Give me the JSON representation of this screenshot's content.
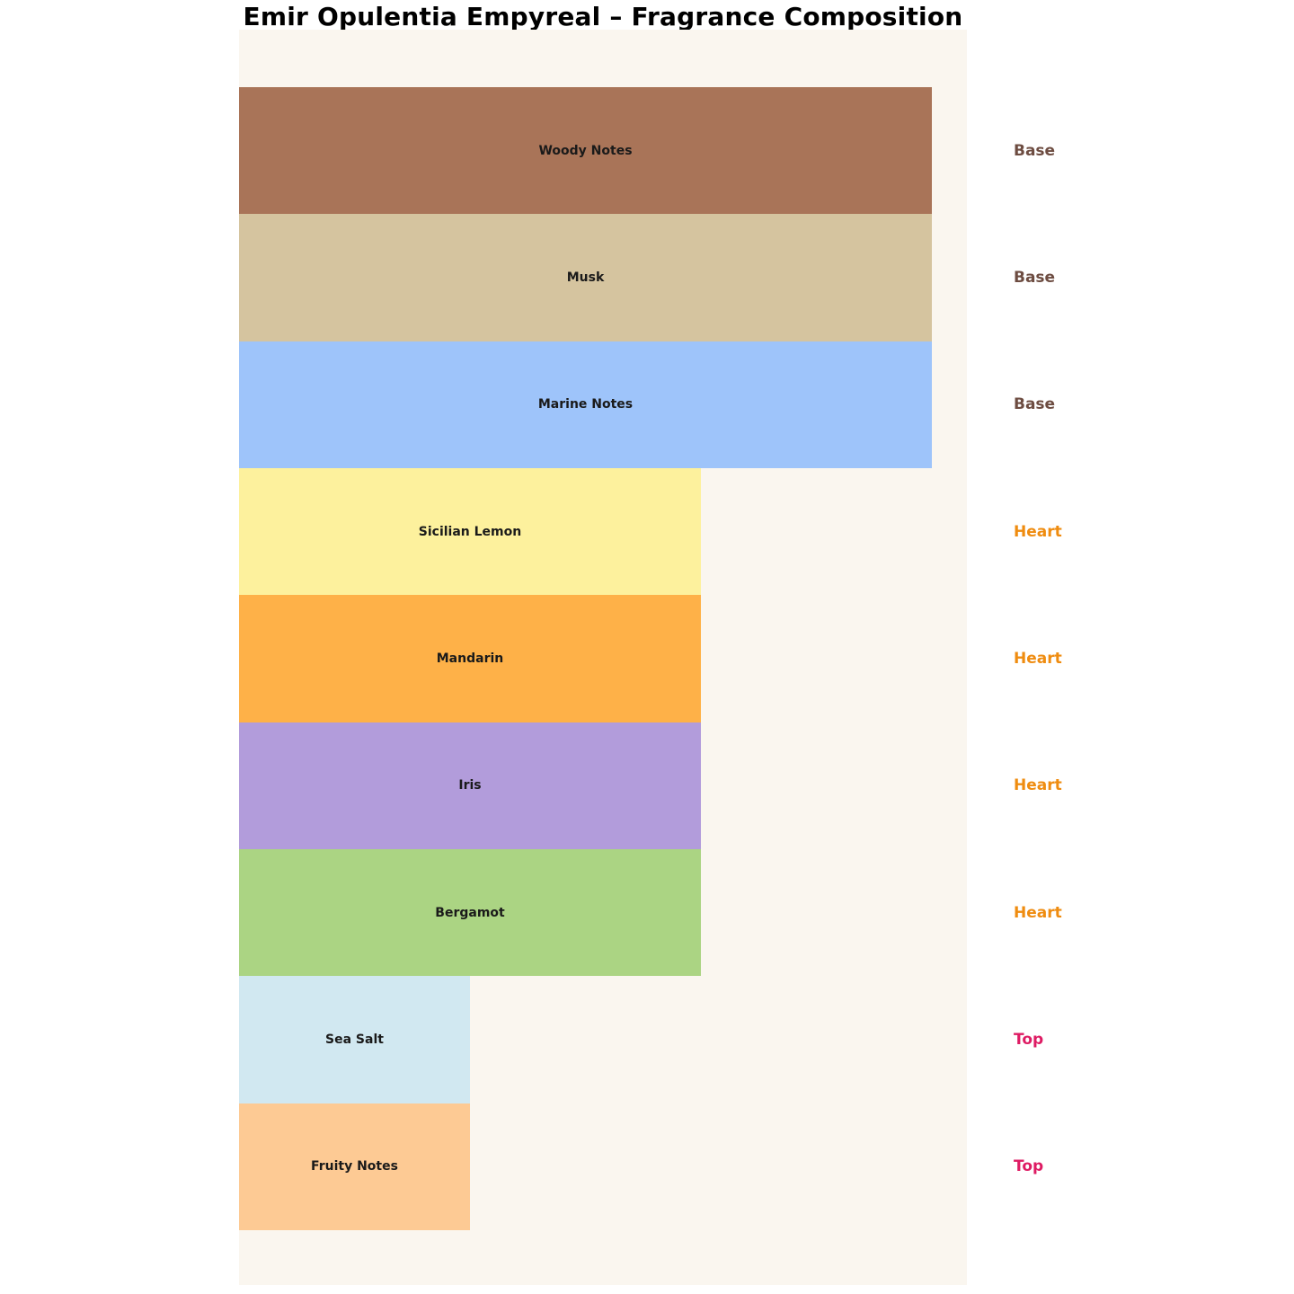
{
  "title": "Emir Opulentia Empyreal – Fragrance Composition",
  "panel": {
    "background_color": "#faf6ef",
    "page_background_color": "#ffffff"
  },
  "chart_data": {
    "type": "bar",
    "orientation": "horizontal",
    "title": "Emir Opulentia Empyreal – Fragrance Composition",
    "categories": [
      "Woody Notes",
      "Musk",
      "Marine Notes",
      "Sicilian Lemon",
      "Mandarin",
      "Iris",
      "Bergamot",
      "Sea Salt",
      "Fruity Notes"
    ],
    "values": [
      3,
      3,
      3,
      2,
      2,
      2,
      2,
      1,
      1
    ],
    "groups": [
      "Base",
      "Base",
      "Base",
      "Heart",
      "Heart",
      "Heart",
      "Heart",
      "Top",
      "Top"
    ],
    "bar_colors": [
      "#a97458",
      "#d5c49f",
      "#9ec4fa",
      "#fdf19d",
      "#feb148",
      "#b29cdb",
      "#abd483",
      "#d1e8f1",
      "#fdca94"
    ],
    "group_label_colors": {
      "Base": "#6d4c41",
      "Heart": "#ef8c10",
      "Top": "#de1b63"
    },
    "bar_label_color": "#1a1a1a",
    "xlabel": "",
    "ylabel": "",
    "xlim": [
      0,
      3.15
    ],
    "grid": false,
    "legend_position": "none",
    "value_units": "relative width (Base:Heart:Top = 3:2:1)"
  }
}
